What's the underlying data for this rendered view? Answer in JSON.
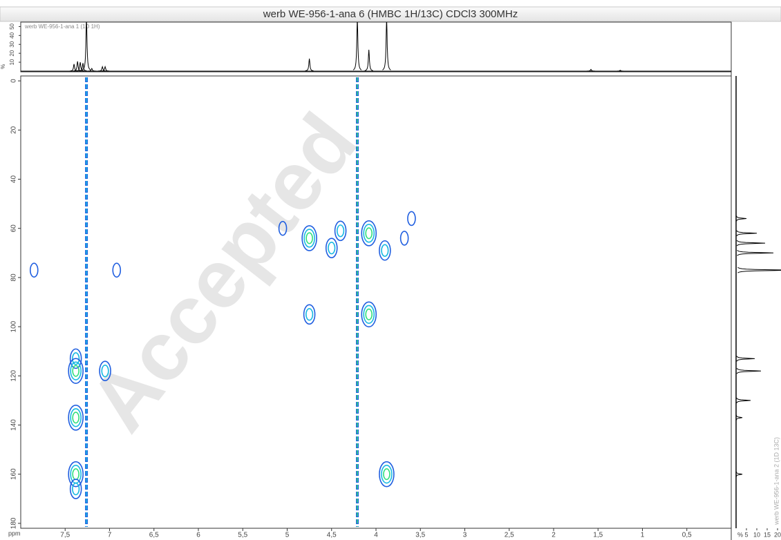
{
  "chart_data": {
    "type": "contour",
    "title": "werb WE-956-1-ana 6 (HMBC 1H/13C) CDCl3 300MHz",
    "x_label": "ppm",
    "watermark": "Accepted",
    "xlim": [
      8.0,
      0.0
    ],
    "xticks": [
      {
        "value": 7.5,
        "label": "7,5"
      },
      7,
      {
        "value": 6.5,
        "label": "6,5"
      },
      6,
      {
        "value": 5.5,
        "label": "5,5"
      },
      5,
      {
        "value": 4.5,
        "label": "4,5"
      },
      4,
      {
        "value": 3.5,
        "label": "3,5"
      },
      3,
      {
        "value": 2.5,
        "label": "2,5"
      },
      2,
      {
        "value": 1.5,
        "label": "1,5"
      },
      1,
      {
        "value": 0.5,
        "label": "0,5"
      }
    ],
    "ylim": [
      -2,
      182
    ],
    "yticks": [
      0,
      20,
      40,
      60,
      80,
      100,
      120,
      140,
      160,
      180
    ],
    "color_levels": [
      "#1f5ee0",
      "#19b9e2",
      "#33e07c"
    ],
    "streaks": [
      7.26,
      4.21
    ],
    "peaks": {
      "x": [
        7.38,
        7.38,
        7.38,
        7.38,
        7.38,
        7.05,
        7.85,
        6.92,
        4.75,
        4.75,
        4.5,
        4.4,
        4.08,
        4.08,
        3.9,
        3.88,
        3.68,
        5.05,
        3.6
      ],
      "y": [
        113,
        118,
        137,
        160,
        166,
        118,
        77,
        77,
        64,
        95,
        68,
        61,
        62,
        95,
        69,
        160,
        64,
        60,
        56
      ],
      "size": [
        2,
        3,
        3,
        3,
        2,
        2,
        1,
        1,
        3,
        2,
        2,
        2,
        3,
        3,
        2,
        3,
        1,
        1,
        1
      ]
    },
    "top_spectrum": {
      "label": "werb WE-956-1-ana 1 (1D 1H)",
      "unit_label": "%",
      "ylim": [
        0,
        55
      ],
      "yticks": [
        10,
        20,
        30,
        40,
        50
      ],
      "peaks": {
        "x": [
          7.4,
          7.36,
          7.33,
          7.3,
          7.26,
          7.2,
          7.08,
          7.05,
          4.75,
          4.21,
          4.08,
          3.88,
          1.58,
          1.25
        ],
        "height": [
          8,
          11,
          10,
          9,
          60,
          3,
          5,
          5,
          14,
          60,
          24,
          60,
          2,
          1
        ]
      }
    },
    "right_spectrum": {
      "label": "werb WE-956-1-ana 2 (1D 13C)",
      "unit_label": "%",
      "xlim": [
        -1,
        21
      ],
      "xticks": [
        5,
        10,
        15,
        20
      ],
      "peaks": {
        "y": [
          56,
          62,
          66,
          70,
          77,
          113,
          118,
          130,
          137,
          160
        ],
        "height": [
          5,
          10,
          14,
          18,
          28,
          9,
          12,
          7,
          3,
          3
        ]
      }
    }
  }
}
